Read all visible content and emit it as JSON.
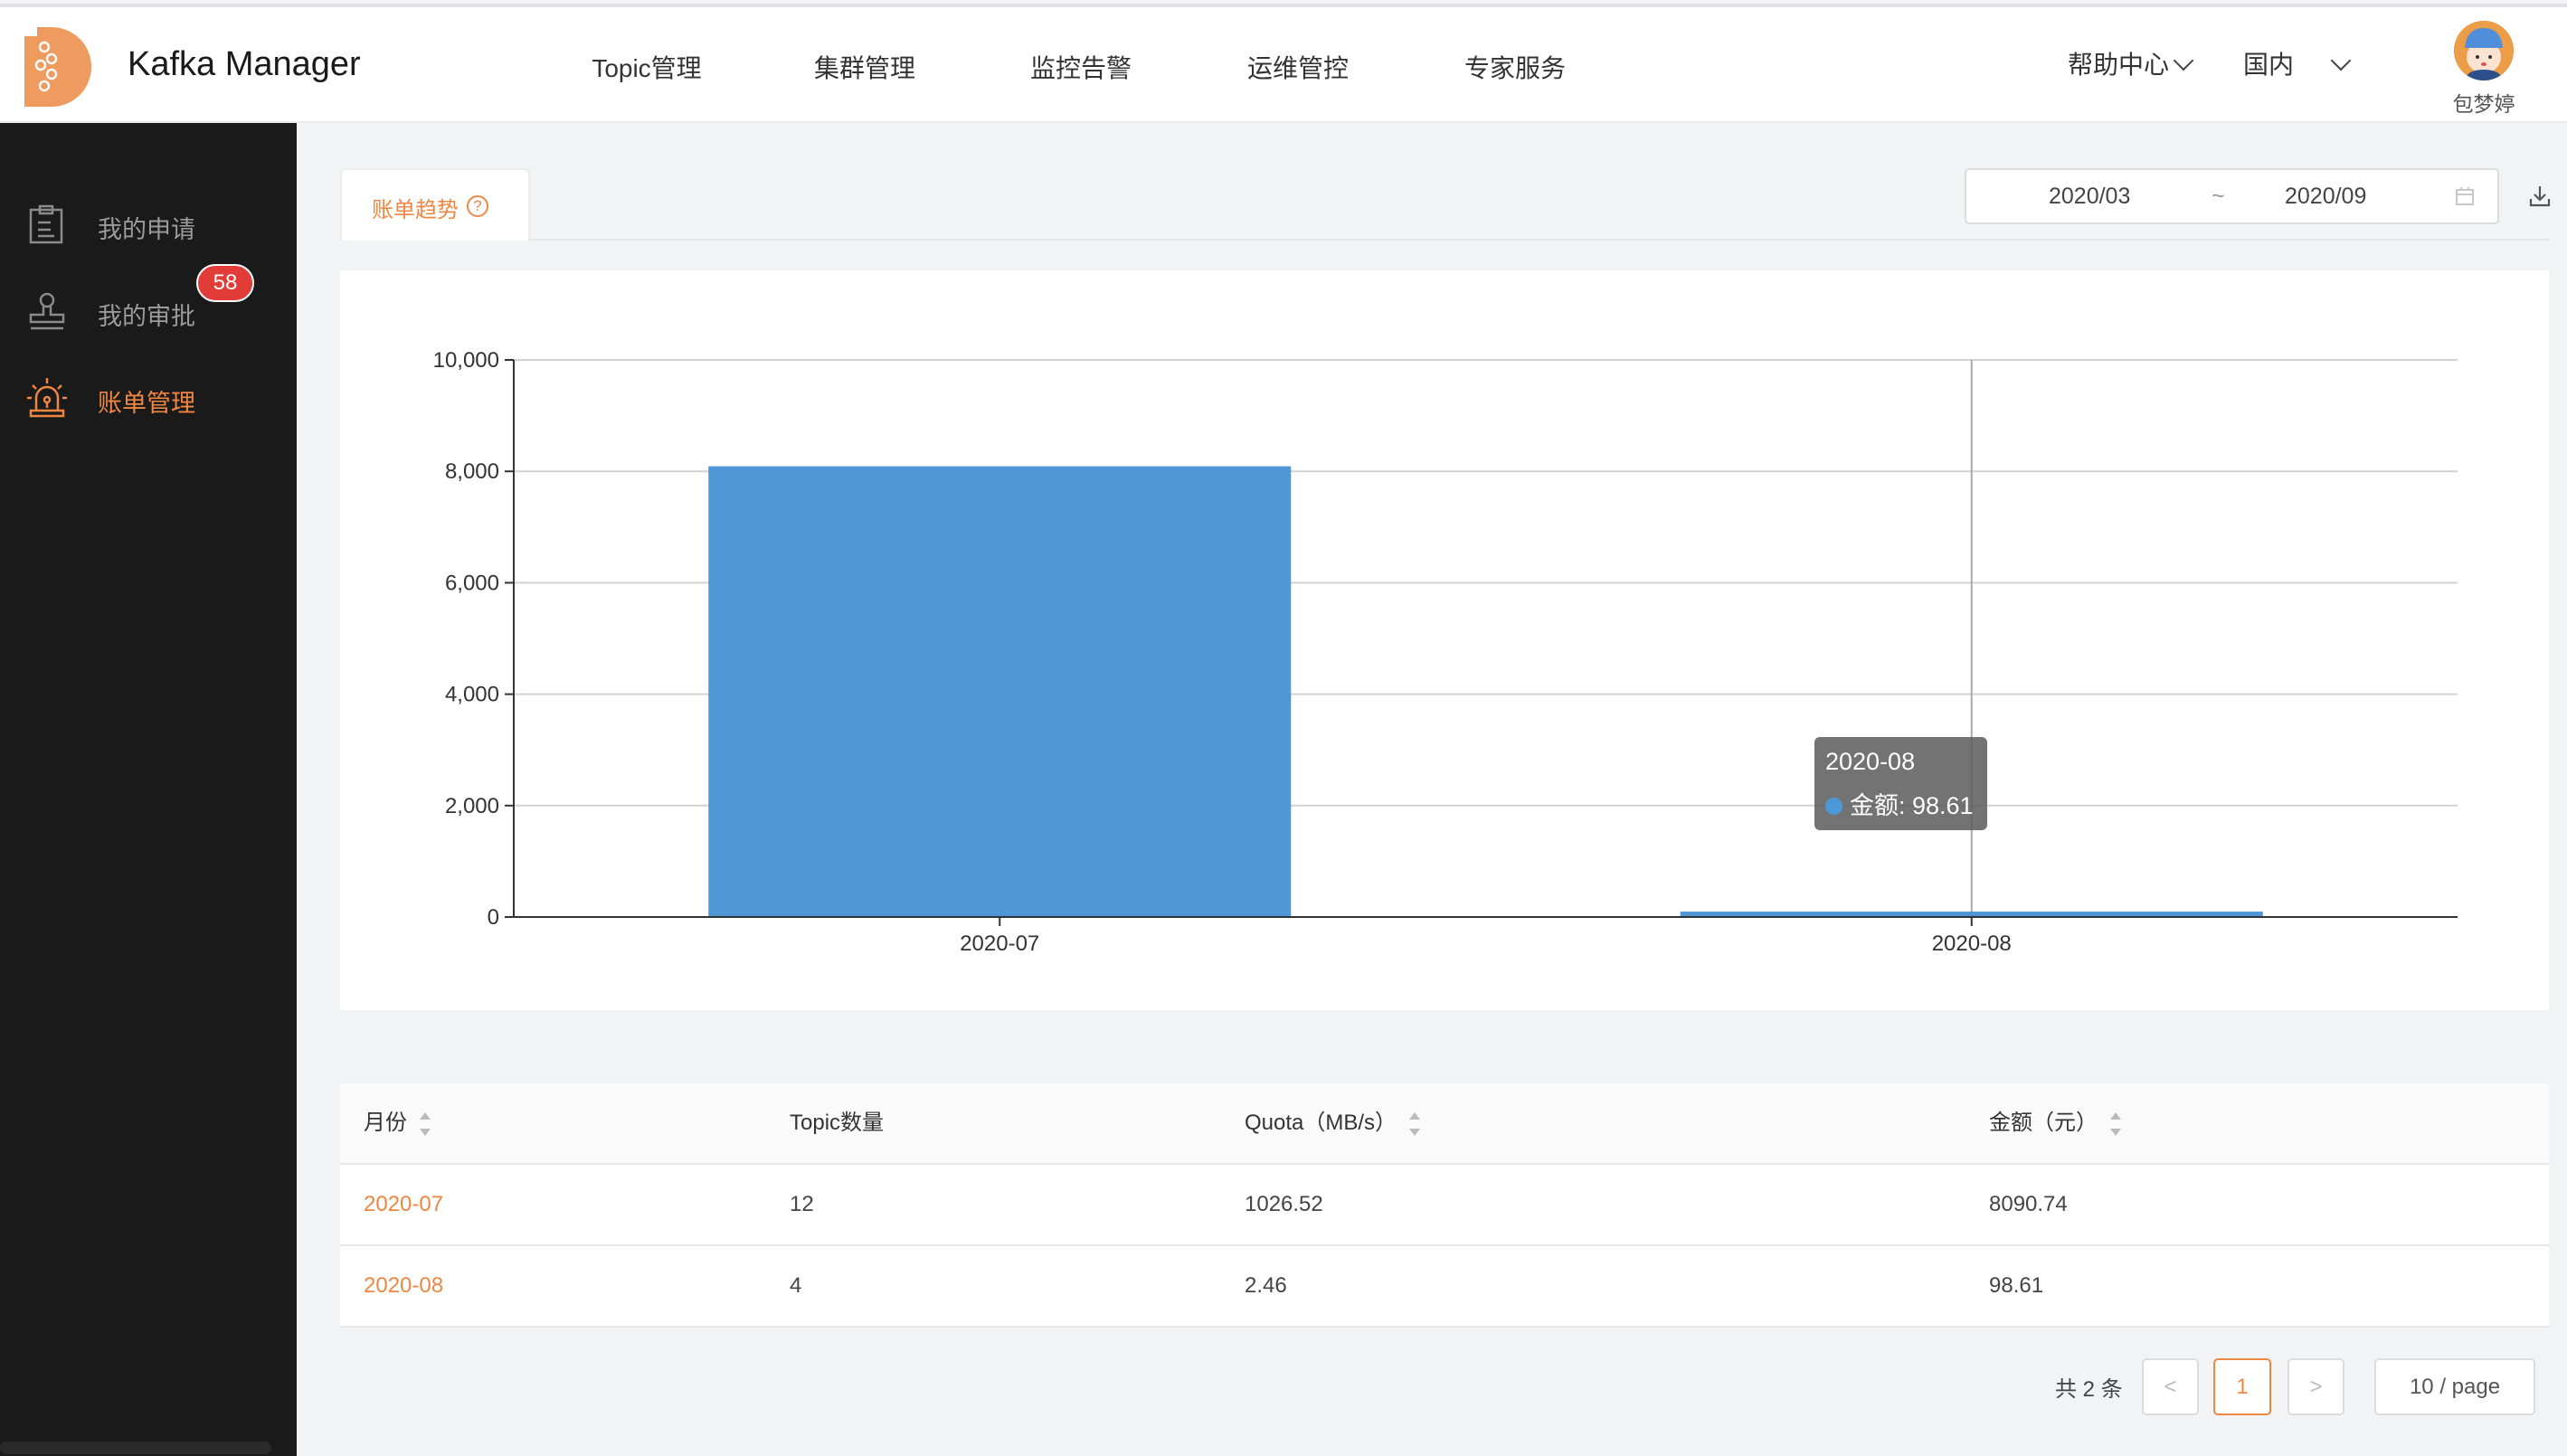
{
  "header": {
    "app_title": "Kafka Manager",
    "nav": [
      "Topic管理",
      "集群管理",
      "监控告警",
      "运维管控",
      "专家服务"
    ],
    "help": "帮助中心",
    "region": "国内",
    "user_name": "包梦婷"
  },
  "sidebar": {
    "items": [
      {
        "label": "我的申请",
        "icon": "clipboard-icon"
      },
      {
        "label": "我的审批",
        "icon": "stamp-icon",
        "badge": "58"
      },
      {
        "label": "账单管理",
        "icon": "alarm-light-icon",
        "active": true
      }
    ]
  },
  "tab": {
    "label": "账单趋势",
    "help_icon": "question-circle-icon"
  },
  "date_range": {
    "start": "2020/03",
    "separator": "~",
    "end": "2020/09"
  },
  "colors": {
    "accent": "#ef8743",
    "bar": "#4f97d7",
    "sidebar_bg": "#1a1a1a",
    "badge": "#e23c39"
  },
  "chart_data": {
    "type": "bar",
    "categories": [
      "2020-07",
      "2020-08"
    ],
    "series": [
      {
        "name": "金额",
        "values": [
          8090.74,
          98.61
        ]
      }
    ],
    "ylim": [
      0,
      10000
    ],
    "yticks": [
      "0",
      "2,000",
      "4,000",
      "6,000",
      "8,000",
      "10,000"
    ],
    "grid": true,
    "tooltip": {
      "title": "2020-08",
      "label": "金额: 98.61"
    }
  },
  "table": {
    "columns": [
      "月份",
      "Topic数量",
      "Quota（MB/s）",
      "金额（元）"
    ],
    "rows": [
      [
        "2020-07",
        "12",
        "1026.52",
        "8090.74"
      ],
      [
        "2020-08",
        "4",
        "2.46",
        "98.61"
      ]
    ]
  },
  "pagination": {
    "total": "共 2 条",
    "prev": "<",
    "page": "1",
    "next": ">",
    "page_size": "10 / page"
  }
}
